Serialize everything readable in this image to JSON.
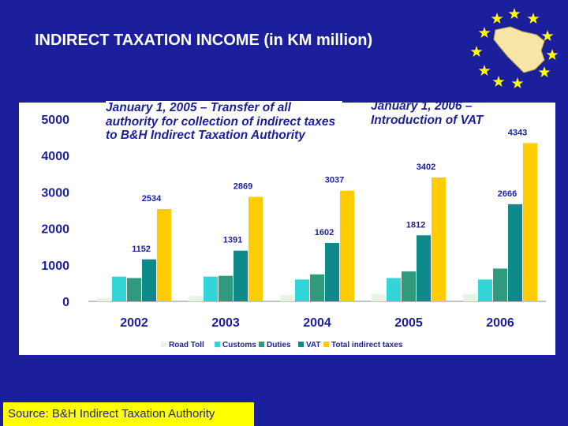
{
  "title": "INDIRECT TAXATION INCOME (in KM million)",
  "source": "Source: B&H Indirect Taxation Authority",
  "annotations": [
    "January 1, 2005 – Transfer of all authority for collection of indirect taxes to B&H Indirect Taxation Authority",
    "January 1, 2006 – Introduction of VAT"
  ],
  "colors": {
    "background": "#1b1f9c",
    "Road Toll": "#e8f5e4",
    "Customs": "#33d6d6",
    "Duties": "#2f9a7c",
    "VAT": "#0f8a8a",
    "Total indirect taxes": "#ffcc00"
  },
  "chart_data": {
    "type": "bar",
    "categories": [
      "2002",
      "2003",
      "2004",
      "2005",
      "2006"
    ],
    "series": [
      {
        "name": "Road Toll",
        "values": [
          90,
          150,
          180,
          200,
          200
        ]
      },
      {
        "name": "Customs",
        "values": [
          680,
          680,
          600,
          640,
          600
        ]
      },
      {
        "name": "Duties",
        "values": [
          640,
          700,
          740,
          820,
          900
        ]
      },
      {
        "name": "VAT",
        "values": [
          1152,
          1391,
          1602,
          1812,
          2666
        ]
      },
      {
        "name": "Total indirect taxes",
        "values": [
          2534,
          2869,
          3037,
          3402,
          4343
        ]
      }
    ],
    "data_labels": {
      "VAT": [
        "1152",
        "1391",
        "1602",
        "1812",
        "2666"
      ],
      "Total indirect taxes": [
        "2534",
        "2869",
        "3037",
        "3402",
        "4343"
      ]
    },
    "yticks": [
      "0",
      "1000",
      "2000",
      "3000",
      "4000",
      "5000"
    ],
    "ylim": [
      0,
      5000
    ],
    "legend": "bottom",
    "grid": false
  }
}
